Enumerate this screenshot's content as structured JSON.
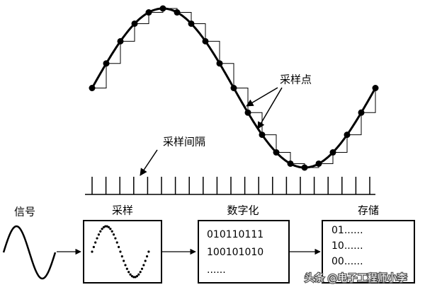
{
  "labels": {
    "sample_point": "采样点",
    "sample_interval": "采样间隔"
  },
  "blocks": [
    {
      "title": "信号"
    },
    {
      "title": "采样"
    },
    {
      "title": "数字化",
      "lines": [
        "010110111",
        "100101010",
        "......"
      ]
    },
    {
      "title": "存储",
      "lines": [
        "01......",
        "10......",
        "00......"
      ]
    }
  ],
  "watermark": "头条 @电子工程师小李"
}
